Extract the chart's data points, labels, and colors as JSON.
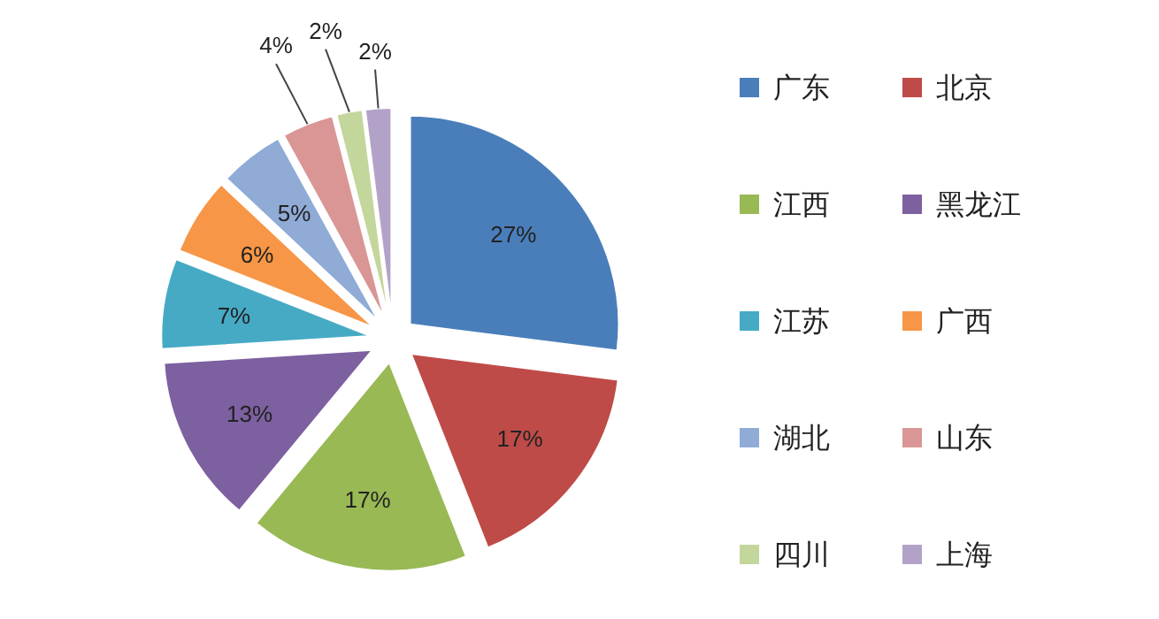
{
  "chart_data": {
    "type": "pie",
    "categories": [
      "广东",
      "北京",
      "江西",
      "黑龙江",
      "江苏",
      "广西",
      "湖北",
      "山东",
      "四川",
      "上海"
    ],
    "values": [
      27,
      17,
      17,
      13,
      7,
      6,
      5,
      4,
      2,
      2
    ],
    "colors": [
      "#4a7ebb",
      "#be4b48",
      "#98b954",
      "#7d60a0",
      "#46aac5",
      "#f79646",
      "#8fabd6",
      "#d99694",
      "#c3d69b",
      "#b3a2c7"
    ],
    "value_labels": [
      "27%",
      "17%",
      "17%",
      "13%",
      "7%",
      "6%",
      "5%",
      "4%",
      "2%",
      "2%"
    ],
    "legend": "right"
  }
}
